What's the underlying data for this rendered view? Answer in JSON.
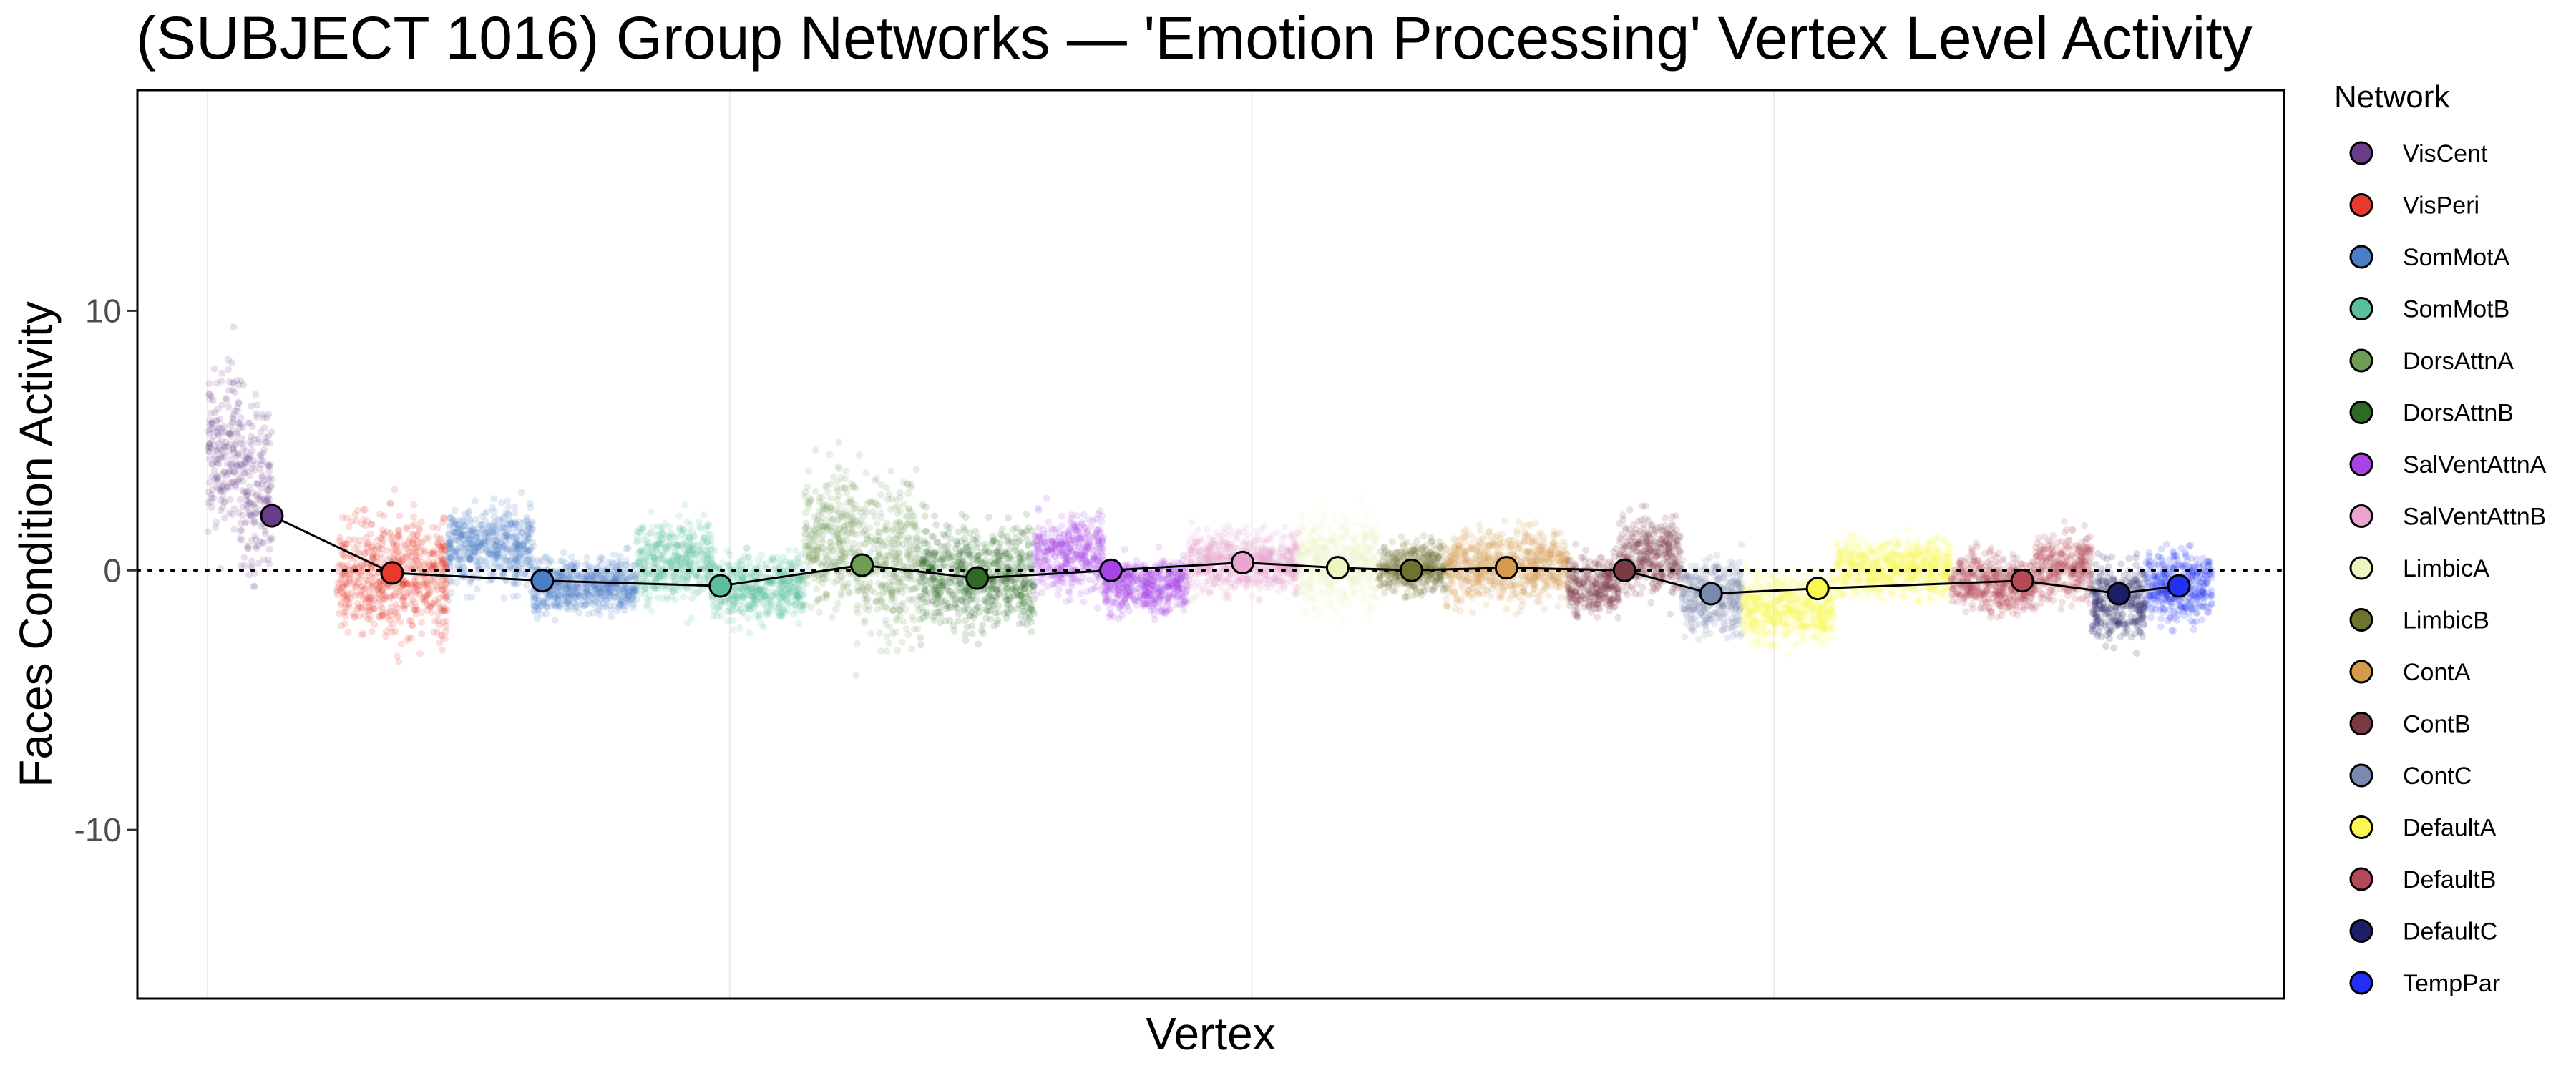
{
  "chart_data": {
    "type": "scatter",
    "title": "(SUBJECT 1016) Group Networks — 'Emotion Processing' Vertex Level Activity",
    "xlabel": "Vertex",
    "ylabel": "Faces Condition Activity",
    "ylim": [
      -16.5,
      18.5
    ],
    "yticks": [
      10,
      0,
      -10
    ],
    "reference_line_y": 0,
    "x_grid": true,
    "y_grid": false,
    "legend": {
      "title": "Network",
      "placement": "right"
    },
    "networks": [
      {
        "name": "VisCent",
        "color": "#6A3D8A"
      },
      {
        "name": "VisPeri",
        "color": "#E8392E"
      },
      {
        "name": "SomMotA",
        "color": "#4A7FC8"
      },
      {
        "name": "SomMotB",
        "color": "#5BBE9F"
      },
      {
        "name": "DorsAttnA",
        "color": "#6E9E56"
      },
      {
        "name": "DorsAttnB",
        "color": "#2E6A26"
      },
      {
        "name": "SalVentAttnA",
        "color": "#A744E8"
      },
      {
        "name": "SalVentAttnB",
        "color": "#E9A4D0"
      },
      {
        "name": "LimbicA",
        "color": "#EDF5C0"
      },
      {
        "name": "LimbicB",
        "color": "#6F7330"
      },
      {
        "name": "ContA",
        "color": "#D59A4E"
      },
      {
        "name": "ContB",
        "color": "#7A3A44"
      },
      {
        "name": "ContC",
        "color": "#7A8AAE"
      },
      {
        "name": "DefaultA",
        "color": "#FAF752"
      },
      {
        "name": "DefaultB",
        "color": "#B34A55"
      },
      {
        "name": "DefaultC",
        "color": "#1D1F66"
      },
      {
        "name": "TempPar",
        "color": "#2230F5"
      }
    ],
    "segments": [
      {
        "network": "VisCent",
        "x": [
          0.0,
          0.25
        ],
        "center": 4.5,
        "spread": 3.6
      },
      {
        "network": "VisCent",
        "x": [
          0.25,
          0.5
        ],
        "center": 3.0,
        "spread": 4.0
      },
      {
        "network": "VisPeri",
        "x": [
          0.0,
          1.0
        ],
        "center": -0.2,
        "spread": 2.6
      },
      {
        "network": "SomMotA",
        "x": [
          0.0,
          0.45
        ],
        "center": 0.9,
        "spread": 1.7
      },
      {
        "network": "SomMotA",
        "x": [
          0.45,
          1.0
        ],
        "center": -0.6,
        "spread": 1.2
      },
      {
        "network": "SomMotB",
        "x": [
          0.0,
          0.45
        ],
        "center": 0.4,
        "spread": 1.8
      },
      {
        "network": "SomMotB",
        "x": [
          0.45,
          1.0
        ],
        "center": -0.7,
        "spread": 1.4
      },
      {
        "network": "DorsAttnA",
        "x": [
          0.0,
          0.45
        ],
        "center": 1.2,
        "spread": 3.0
      },
      {
        "network": "DorsAttnA",
        "x": [
          0.45,
          1.0
        ],
        "center": 0.4,
        "spread": 3.6
      },
      {
        "network": "DorsAttnB",
        "x": [
          0.0,
          1.0
        ],
        "center": -0.3,
        "spread": 2.2
      },
      {
        "network": "SalVentAttnA",
        "x": [
          0.0,
          0.45
        ],
        "center": 0.6,
        "spread": 1.7
      },
      {
        "network": "SalVentAttnA",
        "x": [
          0.45,
          1.0
        ],
        "center": -0.6,
        "spread": 1.2
      },
      {
        "network": "SalVentAttnB",
        "x": [
          0.0,
          1.0
        ],
        "center": 0.3,
        "spread": 1.3
      },
      {
        "network": "LimbicA",
        "x": [
          0.0,
          1.0
        ],
        "center": 0.4,
        "spread": 2.0
      },
      {
        "network": "LimbicB",
        "x": [
          0.0,
          1.0
        ],
        "center": 0.1,
        "spread": 1.1
      },
      {
        "network": "ContA",
        "x": [
          0.0,
          1.0
        ],
        "center": 0.2,
        "spread": 1.6
      },
      {
        "network": "ContB",
        "x": [
          0.0,
          0.45
        ],
        "center": -0.6,
        "spread": 1.3
      },
      {
        "network": "ContB",
        "x": [
          0.45,
          1.0
        ],
        "center": 0.6,
        "spread": 1.7
      },
      {
        "network": "ContC",
        "x": [
          0.0,
          1.0
        ],
        "center": -1.0,
        "spread": 1.6
      },
      {
        "network": "DefaultA",
        "x": [
          0.0,
          0.45
        ],
        "center": -1.5,
        "spread": 1.5
      },
      {
        "network": "DefaultA",
        "x": [
          0.45,
          1.0
        ],
        "center": 0.1,
        "spread": 1.3
      },
      {
        "network": "DefaultB",
        "x": [
          0.0,
          0.6
        ],
        "center": -0.5,
        "spread": 1.3
      },
      {
        "network": "DefaultB",
        "x": [
          0.6,
          1.0
        ],
        "center": 0.1,
        "spread": 1.5
      },
      {
        "network": "DefaultC",
        "x": [
          0.0,
          1.0
        ],
        "center": -1.2,
        "spread": 1.7
      },
      {
        "network": "TempPar",
        "x": [
          0.0,
          1.0
        ],
        "center": -0.6,
        "spread": 1.6
      }
    ],
    "network_spans": [
      {
        "network": "VisCent",
        "x0": 0.0,
        "x1": 181.0
      },
      {
        "network": "VisPeri",
        "x0": 181.0,
        "x1": 336.0
      },
      {
        "network": "SomMotA",
        "x0": 336.0,
        "x1": 600.0
      },
      {
        "network": "SomMotB",
        "x0": 600.0,
        "x1": 834.0
      },
      {
        "network": "DorsAttnA",
        "x0": 834.0,
        "x1": 996.0
      },
      {
        "network": "DorsAttnB",
        "x0": 996.0,
        "x1": 1156.0
      },
      {
        "network": "SalVentAttnA",
        "x0": 1156.0,
        "x1": 1370.0
      },
      {
        "network": "SalVentAttnB",
        "x0": 1370.0,
        "x1": 1525.0
      },
      {
        "network": "LimbicA",
        "x0": 1525.0,
        "x1": 1636.0
      },
      {
        "network": "LimbicB",
        "x0": 1636.0,
        "x1": 1731.0
      },
      {
        "network": "ContA",
        "x0": 1731.0,
        "x1": 1902.0
      },
      {
        "network": "ContB",
        "x0": 1902.0,
        "x1": 2060.0
      },
      {
        "network": "ContC",
        "x0": 2060.0,
        "x1": 2145.0
      },
      {
        "network": "DefaultA",
        "x0": 2145.0,
        "x1": 2437.0
      },
      {
        "network": "DefaultB",
        "x0": 2437.0,
        "x1": 2634.0
      },
      {
        "network": "DefaultC",
        "x0": 2634.0,
        "x1": 2710.0
      },
      {
        "network": "TempPar",
        "x0": 2710.0,
        "x1": 2803.0
      }
    ],
    "network_means": [
      {
        "network": "VisCent",
        "x": 90,
        "y": 2.1
      },
      {
        "network": "VisPeri",
        "x": 258,
        "y": -0.1
      },
      {
        "network": "SomMotA",
        "x": 468,
        "y": -0.4
      },
      {
        "network": "SomMotB",
        "x": 717,
        "y": -0.6
      },
      {
        "network": "DorsAttnA",
        "x": 915,
        "y": 0.2
      },
      {
        "network": "DorsAttnB",
        "x": 1076,
        "y": -0.3
      },
      {
        "network": "SalVentAttnA",
        "x": 1263,
        "y": -0.0
      },
      {
        "network": "SalVentAttnB",
        "x": 1447,
        "y": 0.3
      },
      {
        "network": "LimbicA",
        "x": 1580,
        "y": 0.1
      },
      {
        "network": "LimbicB",
        "x": 1683,
        "y": 0.0
      },
      {
        "network": "ContA",
        "x": 1816,
        "y": 0.1
      },
      {
        "network": "ContB",
        "x": 1981,
        "y": -0.0
      },
      {
        "network": "ContC",
        "x": 2102,
        "y": -0.9
      },
      {
        "network": "DefaultA",
        "x": 2251,
        "y": -0.7
      },
      {
        "network": "DefaultB",
        "x": 2537,
        "y": -0.4
      },
      {
        "network": "DefaultC",
        "x": 2672,
        "y": -0.9
      },
      {
        "network": "TempPar",
        "x": 2756,
        "y": -0.6
      }
    ]
  }
}
